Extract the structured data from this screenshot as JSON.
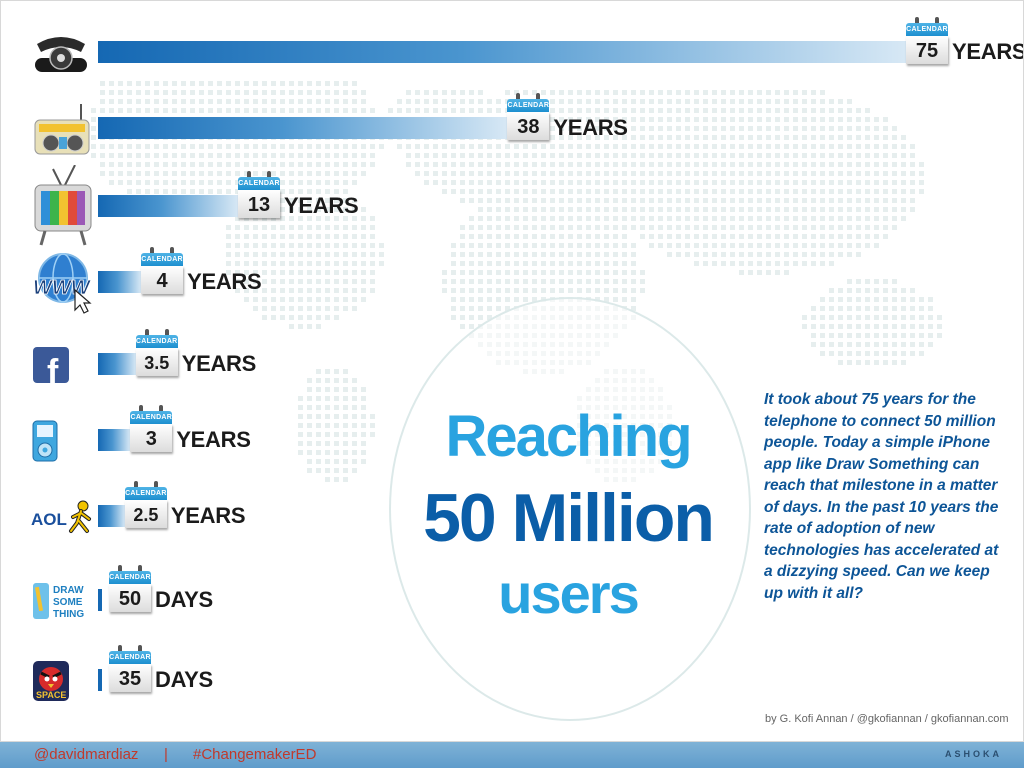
{
  "chart_data": {
    "type": "bar",
    "title": "Reaching 50 Million users",
    "categories": [
      "Telephone",
      "Radio",
      "TV",
      "Internet",
      "Facebook",
      "iPod",
      "AOL",
      "Draw Something",
      "Angry Birds Space"
    ],
    "values": [
      75,
      38,
      13,
      4,
      3.5,
      3,
      2.5,
      50,
      35
    ],
    "display_values": [
      "75",
      "38",
      "13",
      "4",
      "3.5",
      "3",
      "2.5",
      "50",
      "35"
    ],
    "units": [
      "YEARS",
      "YEARS",
      "YEARS",
      "YEARS",
      "YEARS",
      "YEARS",
      "YEARS",
      "DAYS",
      "DAYS"
    ],
    "icons": [
      "telephone-icon",
      "radio-icon",
      "television-icon",
      "www-globe-icon",
      "facebook-icon",
      "ipod-icon",
      "aol-icon",
      "draw-something-icon",
      "angry-birds-space-icon"
    ],
    "calendar_label": "CALENDAR",
    "bar_color": "#1568b3"
  },
  "title": {
    "line1": "Reaching",
    "line2": "50 Million",
    "line3": "users"
  },
  "description": "It took about 75 years for the telephone to connect 50 million people. Today a simple iPhone app like Draw Something can reach that milestone in a matter of days. In the past 10 years the rate of adoption of new technologies has accelerated at a dizzying speed. Can we keep up with it all?",
  "credit": "by G. Kofi Annan / @gkofiannan / gkofiannan.com",
  "footer": {
    "handle": "@davidmardiaz",
    "separator": "|",
    "hashtag": "#ChangemakerED",
    "brand": "ASHOKA"
  },
  "icon_text": {
    "www": "WWW",
    "facebook": "f",
    "aol": "AOL",
    "draw_something": [
      "DRAW",
      "SOME",
      "THING"
    ],
    "space": "SPACE"
  },
  "colors": {
    "accent_light": "#29a3e0",
    "accent_dark": "#0b5ea8",
    "text_dark": "#0d5597",
    "footer_text": "#c0392b"
  }
}
